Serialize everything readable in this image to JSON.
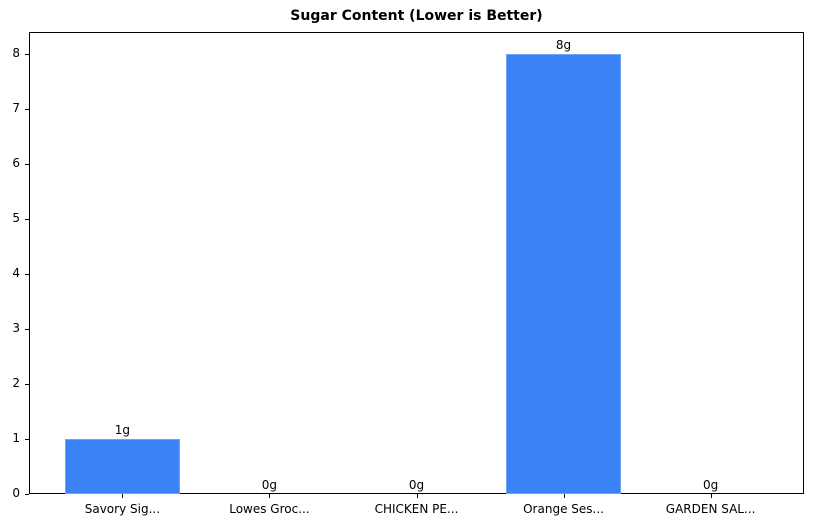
{
  "chart_data": {
    "type": "bar",
    "title": "Sugar Content (Lower is Better)",
    "xlabel": "",
    "ylabel": "",
    "categories": [
      "Savory Sig...",
      "Lowes Groc...",
      "CHICKEN PE...",
      "Orange Ses...",
      "GARDEN SAL..."
    ],
    "values": [
      1,
      0,
      0,
      8,
      0
    ],
    "value_labels": [
      "1g",
      "0g",
      "0g",
      "8g",
      "0g"
    ],
    "unit": "g",
    "ylim": [
      0,
      8.4
    ],
    "yticks": [
      0,
      1,
      2,
      3,
      4,
      5,
      6,
      7,
      8
    ],
    "grid": false,
    "legend": null,
    "bar_color": "#3b82f6"
  },
  "title": "Sugar Content (Lower is Better)",
  "yticks": [
    "0",
    "1",
    "2",
    "3",
    "4",
    "5",
    "6",
    "7",
    "8"
  ],
  "xticks": [
    "Savory Sig...",
    "Lowes Groc...",
    "CHICKEN PE...",
    "Orange Ses...",
    "GARDEN SAL..."
  ],
  "labels": [
    "1g",
    "0g",
    "0g",
    "8g",
    "0g"
  ]
}
